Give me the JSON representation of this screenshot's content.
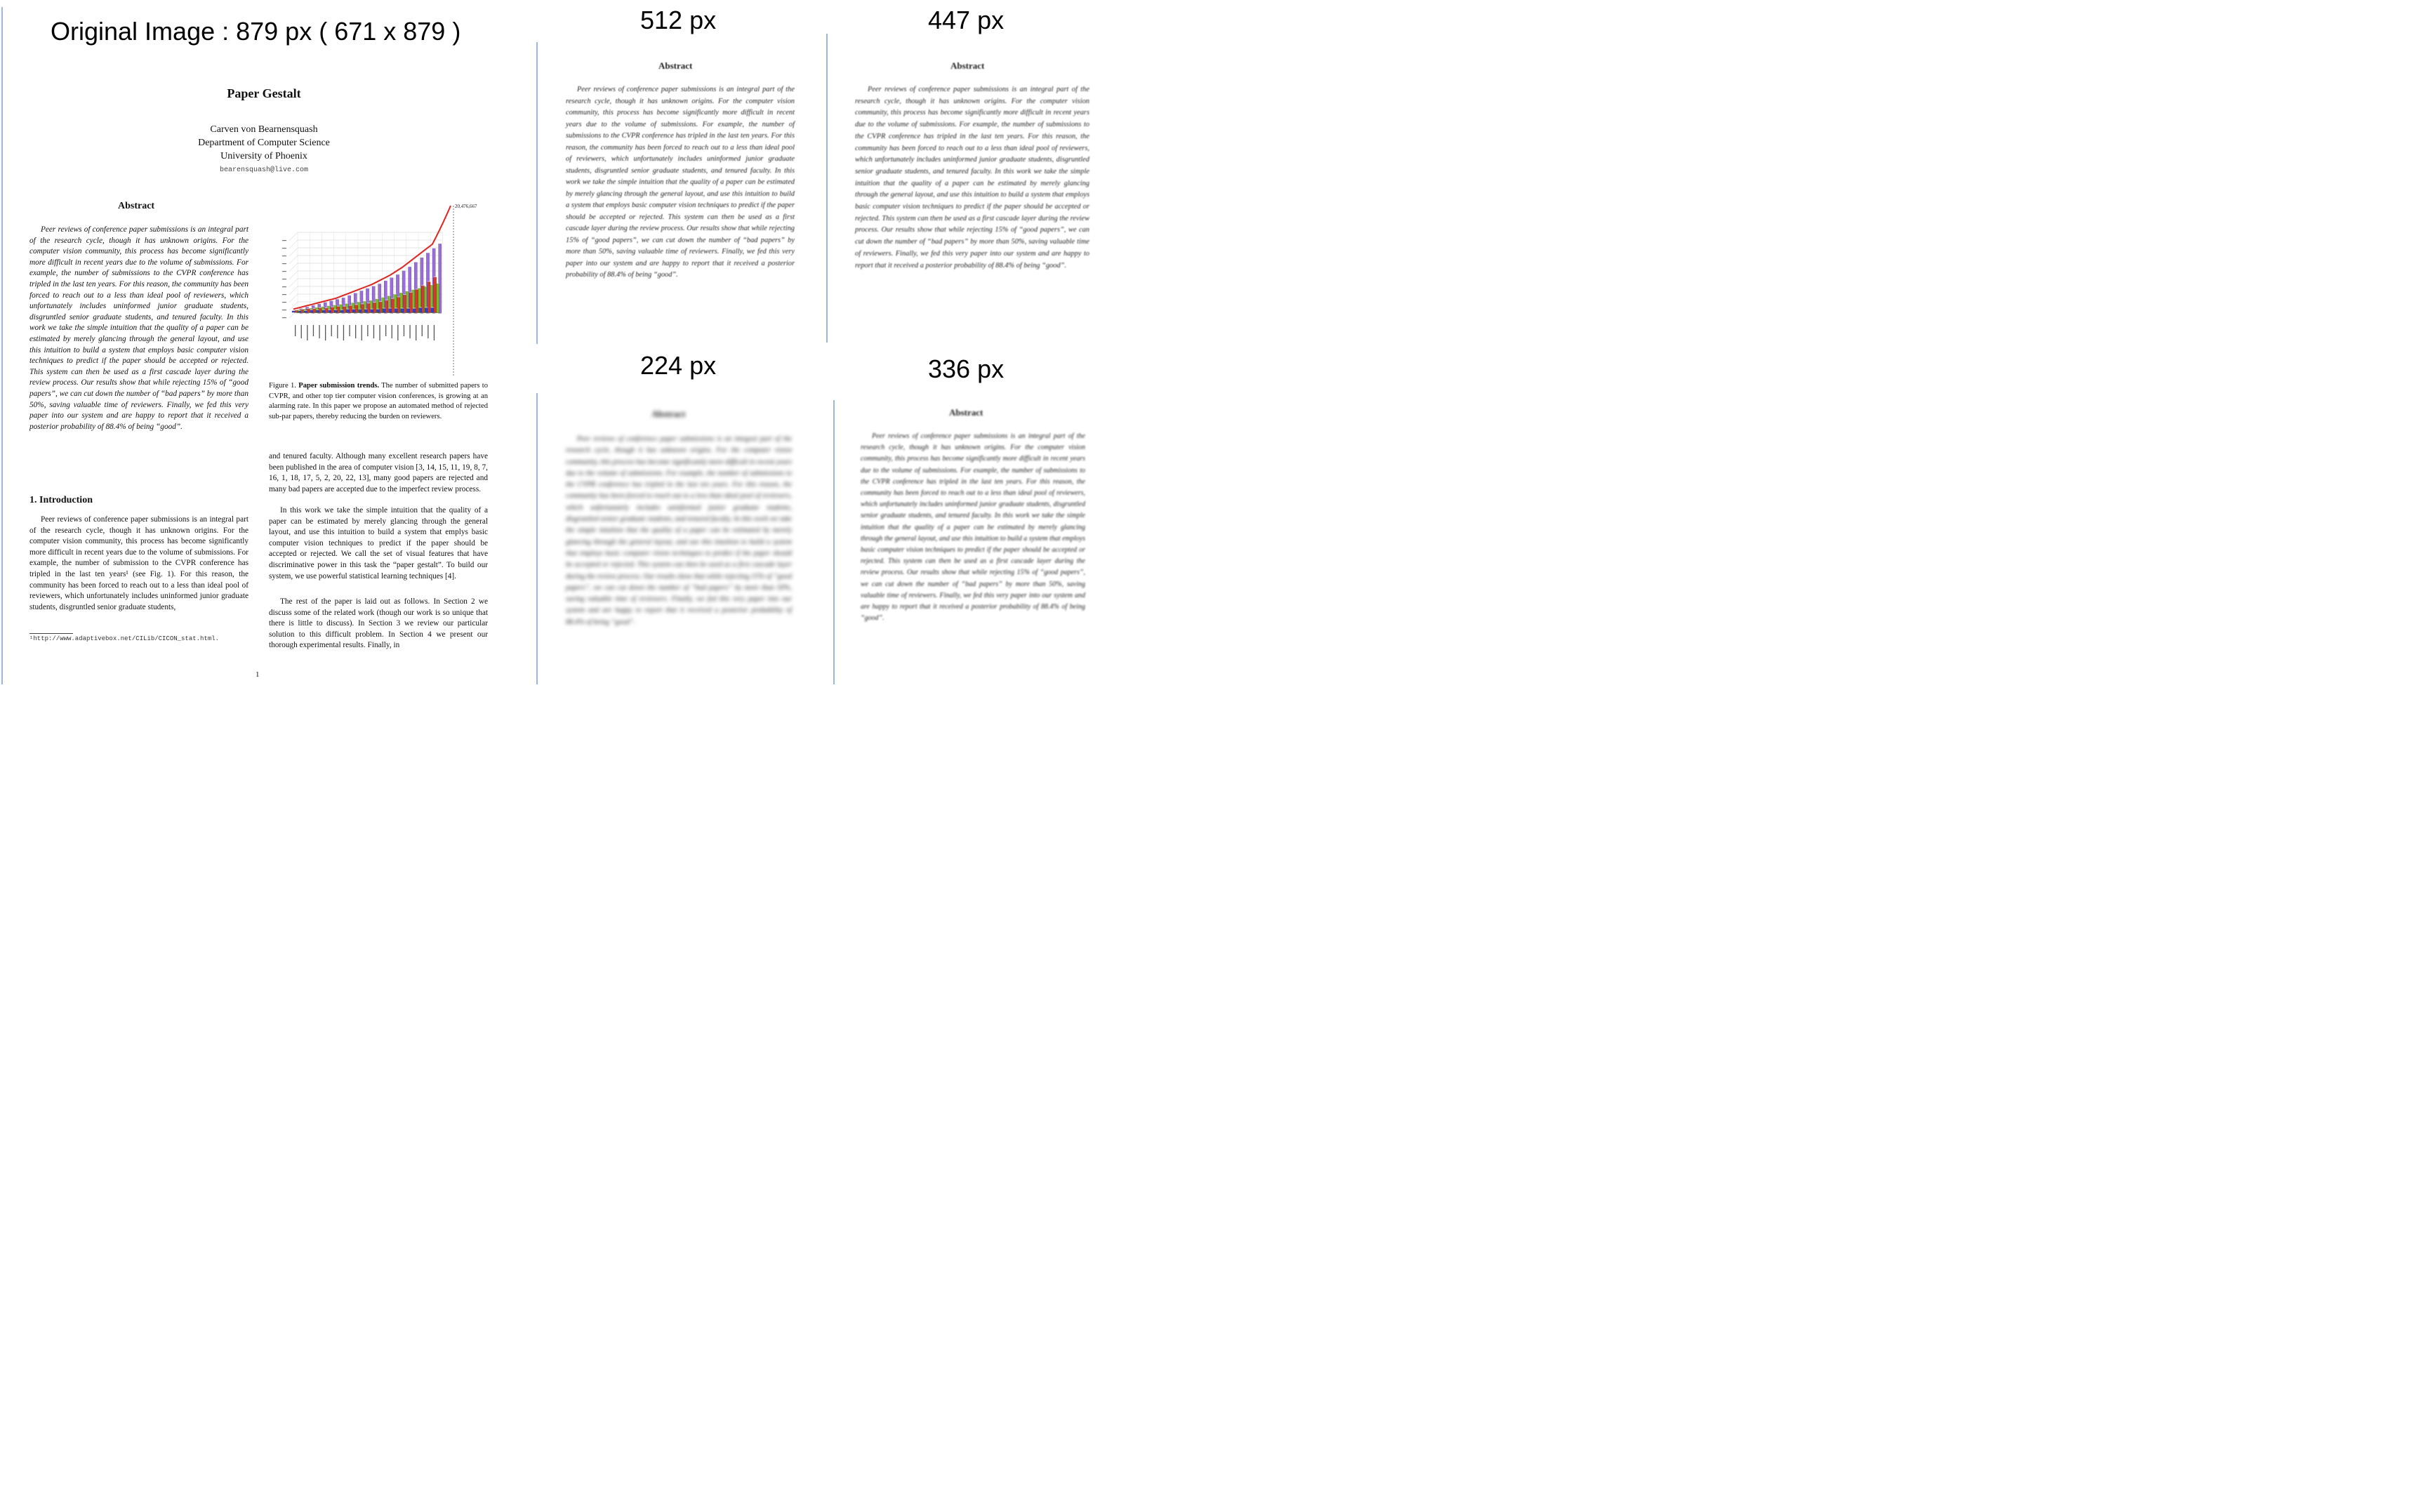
{
  "captions": {
    "original": "Original Image :  879 px ( 671 x 879 )",
    "r512": "512 px",
    "r447": "447 px",
    "r224": "224 px",
    "r336": "336 px"
  },
  "paper": {
    "title": "Paper Gestalt",
    "author": "Carven von Bearnensquash",
    "department": "Department of Computer Science",
    "university": "University of Phoenix",
    "email": "bearensquash@live.com",
    "abstract_heading": "Abstract",
    "abstract_text": "Peer reviews of conference paper submissions is an integral part of the research cycle, though it has unknown origins. For the computer vision community, this process has become significantly more difficult in recent years due to the volume of submissions. For example, the number of submissions to the CVPR conference has tripled in the last ten years. For this reason, the community has been forced to reach out to a less than ideal pool of reviewers, which unfortunately includes uninformed junior graduate students, disgruntled senior graduate students, and tenured faculty. In this work we take the simple intuition that the quality of a paper can be estimated by merely glancing through the general layout, and use this intuition to build a system that employs basic computer vision techniques to predict if the paper should be accepted or rejected. This system can then be used as a first cascade layer during the review process. Our results show that while rejecting 15% of “good papers”, we can cut down the number of “bad papers” by more than 50%, saving valuable time of reviewers. Finally, we fed this very paper into our system and are happy to report that it received a posterior probability of 88.4% of being “good”.",
    "intro_heading": "1. Introduction",
    "intro_text": "Peer reviews of conference paper submissions is an integral part of the research cycle, though it has unknown origins. For the computer vision community, this process has become significantly more difficult in recent years due to the volume of submissions. For example, the number of submission to the CVPR conference has tripled in the last ten years¹ (see Fig. 1). For this reason, the community has been forced to reach out to a less than ideal pool of reviewers, which unfortunately includes uninformed junior graduate students, disgruntled senior graduate students,",
    "footnote": "¹http://www.adaptivebox.net/CILib/CICON_stat.html.",
    "figure_caption_label": "Figure 1.",
    "figure_caption_bold": "Paper submission trends.",
    "figure_caption_text": "The number of submitted papers to CVPR, and other top tier computer vision conferences, is growing at an alarming rate. In this paper we propose an automated method of rejected sub-par papers, thereby reducing the burden on reviewers.",
    "right_p1": "and tenured faculty. Although many excellent research papers have been published in the area of computer vision [3, 14, 15, 11, 19, 8, 7, 16, 1, 18, 17, 5, 2, 20, 22, 13], many good papers are rejected and many bad papers are accepted due to the imperfect review process.",
    "right_p2": "In this work we take the simple intuition that the quality of a paper can be estimated by merely glancing through the general layout, and use this intuition to build a system that emplys basic computer vision techniques to predict if the paper should be accepted or rejected. We call the set of visual features that have discriminative power in this task the “paper gestalt”. To build our system, we use powerful statistical learning techniques [4].",
    "right_p3": "The rest of the paper is laid out as follows. In Section 2 we discuss some of the related work (though our work is so unique that there is little to discuss). In Section 3 we review our particular solution to this difficult problem. In Section 4 we present our thorough experimental results. Finally, in",
    "page_number": "1",
    "chart_value_label": "20,476,667"
  },
  "chart_data": {
    "type": "bar",
    "title": "",
    "xlabel": "",
    "ylabel": "",
    "categories_count": 24,
    "series": [
      {
        "color": "#3340c8",
        "values": [
          2,
          2,
          2,
          3,
          3,
          3,
          3,
          3,
          3,
          4,
          4,
          4,
          4,
          4,
          4,
          5,
          5,
          5,
          5,
          5,
          5,
          6,
          6,
          6
        ]
      },
      {
        "color": "#d23a2a",
        "values": [
          3,
          4,
          5,
          5,
          6,
          6,
          7,
          8,
          8,
          9,
          10,
          11,
          12,
          13,
          14,
          16,
          18,
          20,
          23,
          26,
          30,
          35,
          40,
          46
        ]
      },
      {
        "color": "#7dbb2b",
        "values": [
          4,
          5,
          6,
          7,
          8,
          9,
          10,
          11,
          12,
          13,
          14,
          15,
          16,
          18,
          20,
          22,
          24,
          26,
          28,
          30,
          32,
          34,
          36,
          38
        ]
      },
      {
        "color": "#9b6be0",
        "values": [
          6,
          8,
          10,
          12,
          14,
          16,
          18,
          20,
          23,
          26,
          29,
          32,
          35,
          38,
          42,
          46,
          50,
          55,
          60,
          66,
          72,
          78,
          84,
          90
        ]
      }
    ],
    "trend_color": "#e0241f",
    "ylim": [
      0,
      100
    ]
  },
  "panel_text": "Peer reviews of conference paper submissions is an integral part of the research cycle, though it has unknown origins. For the computer vision community, this process has become significantly more difficult in recent years due to the volume of submissions. For example, the number of submissions to the CVPR conference has tripled in the last ten years. For this reason, the community has been forced to reach out to a less than ideal pool of reviewers, which unfortunately includes uninformed junior graduate students, disgruntled senior graduate students, and tenured faculty. In this work we take the simple intuition that the quality of a paper can be estimated by merely glancing through the general layout, and use this intuition to build a system that employs basic computer vision techniques to predict if the paper should be accepted or rejected. This system can then be used as a first cascade layer during the review process. Our results show that while rejecting 15% of “good papers”, we can cut down the number of “bad papers” by more than 50%, saving valuable time of reviewers. Finally, we fed this very paper into our system and are happy to report that it received a posterior probability of 88.4% of being “good”.",
  "panel_heading": "Abstract"
}
